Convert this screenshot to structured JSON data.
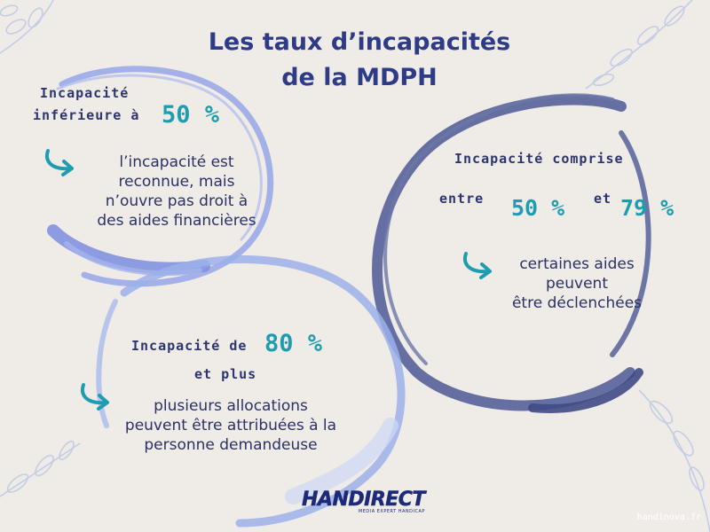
{
  "title": {
    "line1": "Les taux d’incapacités",
    "line2": "de la MDPH"
  },
  "block1": {
    "heading_line1": "Incapacité",
    "heading_line2": "inférieure à",
    "percent": "50 %",
    "body_lines": [
      "l’incapacité est",
      "reconnue, mais",
      "n’ouvre pas droit à",
      "des aides financières"
    ]
  },
  "block2": {
    "heading_line1": "Incapacité comprise",
    "entre": "entre",
    "percent1": "50 %",
    "et": "et",
    "percent2": "79 %",
    "body_lines": [
      "certaines aides",
      "peuvent",
      "être déclenchées"
    ]
  },
  "block3": {
    "heading_line1": "Incapacité de",
    "percent": "80 %",
    "heading_line2": "et plus",
    "body_lines": [
      "plusieurs allocations",
      "peuvent être attribuées à la",
      "personne demandeuse"
    ]
  },
  "logo": {
    "main": "HANDIRECT",
    "sub": "MEDIA EXPERT HANDICAP"
  },
  "credit": "handinova.fr",
  "colors": {
    "background": "#efebe7",
    "title": "#2e3b86",
    "heading": "#2c356f",
    "accent": "#1f9db0",
    "circle_light": "#8ea2e6",
    "circle_dark": "#4b5893"
  }
}
